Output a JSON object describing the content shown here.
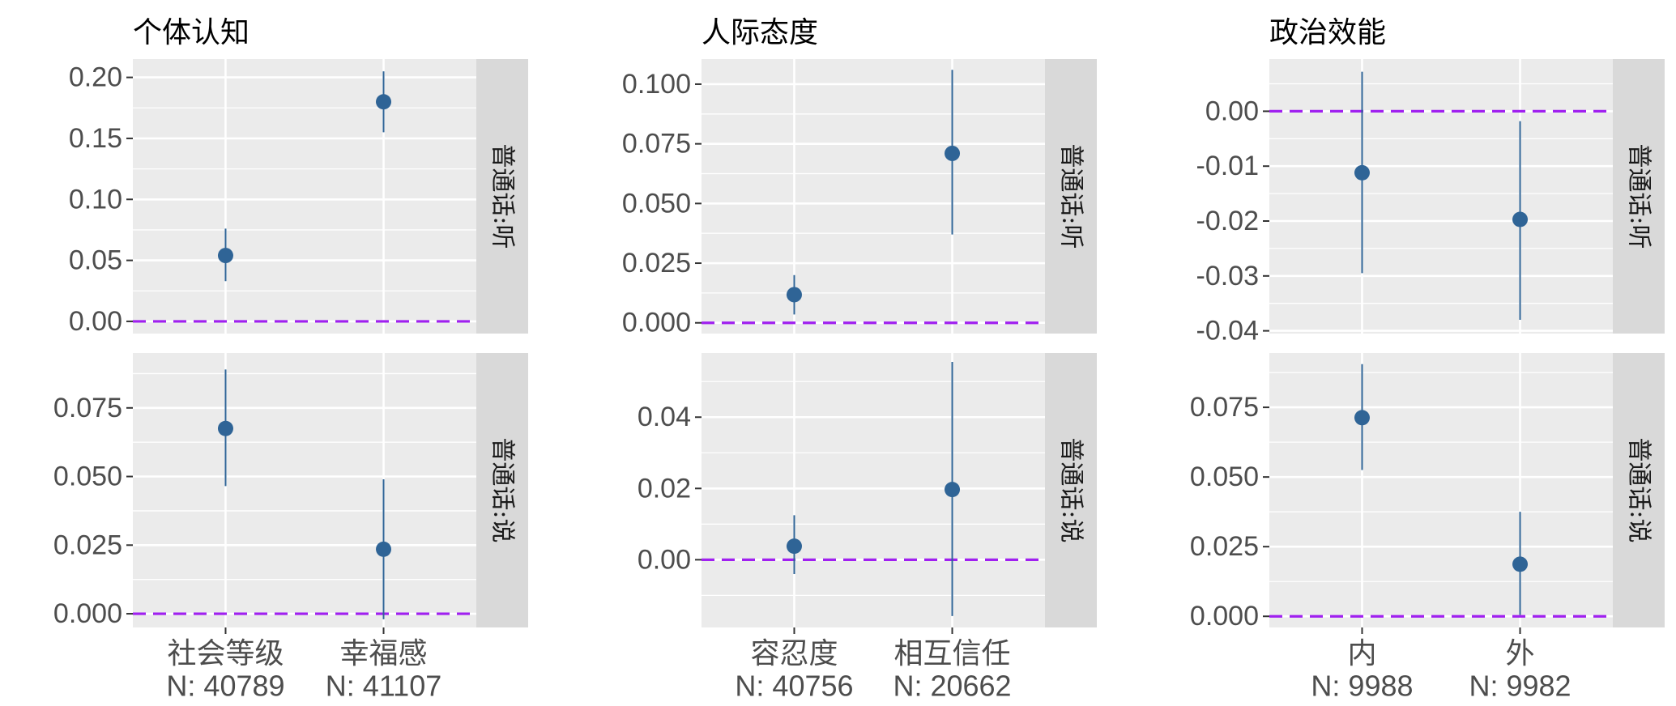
{
  "chart_data": [
    {
      "type": "scatter",
      "title": "个体认知",
      "categories": [
        "社会等级",
        "幸福感"
      ],
      "n_labels": [
        "N: 40789",
        "N: 41107"
      ],
      "reference_line": 0,
      "facets": [
        {
          "strip": "普通话:听",
          "ylim": [
            -0.01,
            0.215
          ],
          "yticks": [
            0.0,
            0.05,
            0.1,
            0.15,
            0.2
          ],
          "ytick_labels": [
            "0.00",
            "0.05",
            "0.10",
            "0.15",
            "0.20"
          ],
          "points": [
            {
              "category": "社会等级",
              "estimate": 0.054,
              "lower": 0.033,
              "upper": 0.076
            },
            {
              "category": "幸福感",
              "estimate": 0.18,
              "lower": 0.155,
              "upper": 0.205
            }
          ]
        },
        {
          "strip": "普通话:说",
          "ylim": [
            -0.005,
            0.095
          ],
          "yticks": [
            0.0,
            0.025,
            0.05,
            0.075
          ],
          "ytick_labels": [
            "0.000",
            "0.025",
            "0.050",
            "0.075"
          ],
          "points": [
            {
              "category": "社会等级",
              "estimate": 0.0675,
              "lower": 0.0465,
              "upper": 0.089
            },
            {
              "category": "幸福感",
              "estimate": 0.0235,
              "lower": -0.002,
              "upper": 0.049
            }
          ]
        }
      ]
    },
    {
      "type": "scatter",
      "title": "人际态度",
      "categories": [
        "容忍度",
        "相互信任"
      ],
      "n_labels": [
        "N: 40756",
        "N: 20662"
      ],
      "reference_line": 0,
      "facets": [
        {
          "strip": "普通话:听",
          "ylim": [
            -0.0045,
            0.1105
          ],
          "yticks": [
            0.0,
            0.025,
            0.05,
            0.075,
            0.1
          ],
          "ytick_labels": [
            "0.000",
            "0.025",
            "0.050",
            "0.075",
            "0.100"
          ],
          "points": [
            {
              "category": "容忍度",
              "estimate": 0.0118,
              "lower": 0.0035,
              "upper": 0.02
            },
            {
              "category": "相互信任",
              "estimate": 0.071,
              "lower": 0.037,
              "upper": 0.106
            }
          ]
        },
        {
          "strip": "普通话:说",
          "ylim": [
            -0.019,
            0.058
          ],
          "yticks": [
            0.0,
            0.02,
            0.04
          ],
          "ytick_labels": [
            "0.00",
            "0.02",
            "0.04"
          ],
          "points": [
            {
              "category": "容忍度",
              "estimate": 0.0038,
              "lower": -0.004,
              "upper": 0.0125
            },
            {
              "category": "相互信任",
              "estimate": 0.0197,
              "lower": -0.0158,
              "upper": 0.0555
            }
          ]
        }
      ]
    },
    {
      "type": "scatter",
      "title": "政治效能",
      "categories": [
        "内",
        "外"
      ],
      "n_labels": [
        "N: 9988",
        "N: 9982"
      ],
      "reference_line": 0,
      "facets": [
        {
          "strip": "普通话:听",
          "ylim": [
            -0.0405,
            0.0095
          ],
          "yticks": [
            -0.04,
            -0.03,
            -0.02,
            -0.01,
            0.0
          ],
          "ytick_labels": [
            "-0.04",
            "-0.03",
            "-0.02",
            "-0.01",
            "0.00"
          ],
          "points": [
            {
              "category": "内",
              "estimate": -0.0112,
              "lower": -0.0295,
              "upper": 0.0072
            },
            {
              "category": "外",
              "estimate": -0.0197,
              "lower": -0.038,
              "upper": -0.0018
            }
          ]
        },
        {
          "strip": "普通话:说",
          "ylim": [
            -0.004,
            0.0945
          ],
          "yticks": [
            0.0,
            0.025,
            0.05,
            0.075
          ],
          "ytick_labels": [
            "0.000",
            "0.025",
            "0.050",
            "0.075"
          ],
          "points": [
            {
              "category": "内",
              "estimate": 0.0713,
              "lower": 0.0525,
              "upper": 0.0905
            },
            {
              "category": "外",
              "estimate": 0.0187,
              "lower": 0.0005,
              "upper": 0.0375
            }
          ]
        }
      ]
    }
  ],
  "colors": {
    "panel_background": "#ebebeb",
    "strip_background": "#d9d9d9",
    "grid": "#ffffff",
    "point": "#2f6496",
    "interval": "#2f6496",
    "reference_line": "#a020f0"
  }
}
